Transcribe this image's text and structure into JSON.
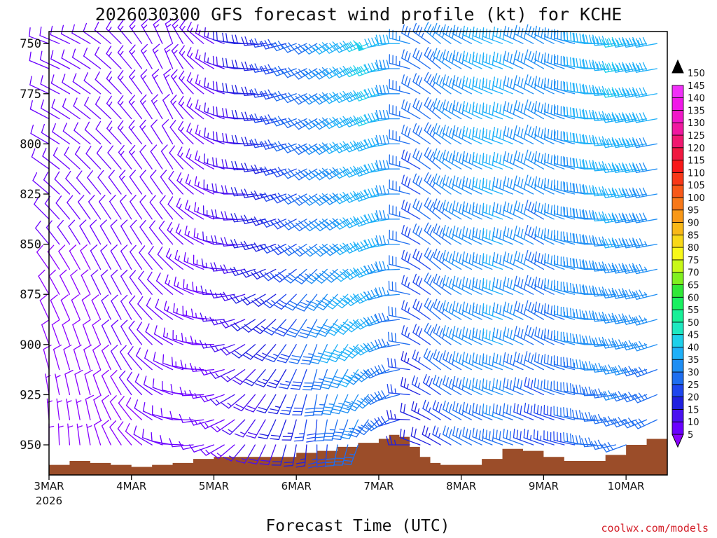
{
  "chart_data": {
    "type": "wind-barb-time-height",
    "title": "2026030300 GFS forecast wind profile (kt) for KCHE",
    "xlabel": "Forecast Time (UTC)",
    "ylabel": "",
    "credit": "coolwx.com/models",
    "x_start_hours": 0,
    "x_end_hours": 180,
    "x_ticks": [
      {
        "hour": 0,
        "label": "3MAR",
        "sublabel": "2026"
      },
      {
        "hour": 24,
        "label": "4MAR"
      },
      {
        "hour": 48,
        "label": "5MAR"
      },
      {
        "hour": 72,
        "label": "6MAR"
      },
      {
        "hour": 96,
        "label": "7MAR"
      },
      {
        "hour": 120,
        "label": "8MAR"
      },
      {
        "hour": 144,
        "label": "9MAR"
      },
      {
        "hour": 168,
        "label": "10MAR"
      }
    ],
    "y_range_hpa": [
      744,
      965
    ],
    "y_ticks": [
      750,
      775,
      800,
      825,
      850,
      875,
      900,
      925,
      950
    ],
    "colorbar": {
      "levels": [
        5,
        10,
        15,
        20,
        25,
        30,
        35,
        40,
        45,
        50,
        55,
        60,
        65,
        70,
        75,
        80,
        85,
        90,
        95,
        100,
        105,
        110,
        115,
        120,
        125,
        130,
        135,
        140,
        145,
        150
      ],
      "colors": [
        "#8a00ff",
        "#6a00ff",
        "#4a10f0",
        "#2020e0",
        "#1e46ee",
        "#1e6ef0",
        "#1e8ef4",
        "#1eb0f8",
        "#1ed0ea",
        "#1ee8c0",
        "#18f098",
        "#18f060",
        "#30e838",
        "#80f020",
        "#c8f818",
        "#f8f818",
        "#f8d818",
        "#f8b818",
        "#f89818",
        "#f87818",
        "#f85818",
        "#f83818",
        "#f81818",
        "#f01840",
        "#f01870",
        "#f018a0",
        "#f018c8",
        "#f018e8",
        "#f030f8",
        "#000000"
      ]
    },
    "wind": {
      "time_step_hours": 3,
      "levels_hpa": [
        750,
        762.5,
        775,
        787.5,
        800,
        812.5,
        825,
        837.5,
        850,
        862.5,
        875,
        887.5,
        900,
        912.5,
        925,
        937.5,
        950
      ],
      "time_anchors_hours": [
        0,
        12,
        24,
        36,
        48,
        54,
        60,
        72,
        78,
        84,
        90,
        96,
        102,
        108,
        114,
        120,
        132,
        144,
        156,
        168,
        180
      ],
      "speed_kt": {
        "750": [
          12,
          10,
          14,
          13,
          14,
          20,
          22,
          30,
          34,
          40,
          44,
          48,
          40,
          30,
          35,
          38,
          42,
          36,
          40,
          46,
          40
        ],
        "800": [
          12,
          11,
          13,
          12,
          13,
          18,
          20,
          30,
          34,
          38,
          42,
          44,
          38,
          30,
          34,
          38,
          42,
          36,
          40,
          44,
          38
        ],
        "850": [
          10,
          10,
          12,
          12,
          14,
          18,
          20,
          28,
          32,
          38,
          40,
          44,
          36,
          28,
          32,
          36,
          40,
          34,
          38,
          40,
          36
        ],
        "900": [
          8,
          9,
          11,
          12,
          14,
          16,
          20,
          28,
          34,
          40,
          44,
          40,
          34,
          26,
          32,
          36,
          40,
          32,
          36,
          38,
          34
        ],
        "950": [
          6,
          7,
          9,
          11,
          12,
          14,
          16,
          22,
          26,
          30,
          34,
          30,
          26,
          20,
          24,
          30,
          34,
          26,
          30,
          32,
          30
        ]
      },
      "direction_deg": {
        "750": [
          290,
          300,
          320,
          340,
          300,
          280,
          270,
          250,
          240,
          240,
          245,
          250,
          270,
          300,
          310,
          300,
          290,
          300,
          280,
          260,
          260
        ],
        "800": [
          300,
          310,
          320,
          330,
          300,
          280,
          270,
          250,
          240,
          240,
          245,
          250,
          270,
          300,
          310,
          300,
          290,
          300,
          280,
          260,
          260
        ],
        "850": [
          320,
          330,
          330,
          320,
          290,
          270,
          260,
          240,
          235,
          235,
          240,
          250,
          270,
          300,
          310,
          300,
          290,
          300,
          280,
          260,
          260
        ],
        "900": [
          340,
          340,
          330,
          300,
          270,
          250,
          230,
          210,
          200,
          210,
          220,
          240,
          260,
          300,
          310,
          300,
          290,
          300,
          280,
          260,
          250
        ],
        "950": [
          360,
          350,
          320,
          280,
          250,
          230,
          210,
          190,
          180,
          190,
          200,
          220,
          250,
          290,
          300,
          300,
          290,
          290,
          280,
          250,
          240
        ]
      }
    },
    "terrain": {
      "fill_color": "#9b4d29",
      "time_hours": [
        0,
        6,
        12,
        18,
        24,
        30,
        36,
        42,
        48,
        54,
        60,
        66,
        72,
        78,
        84,
        90,
        96,
        99,
        102,
        105,
        108,
        111,
        114,
        117,
        120,
        126,
        132,
        138,
        144,
        150,
        156,
        162,
        168,
        174,
        180
      ],
      "surface_pressure_hpa": [
        960,
        958,
        959,
        960,
        961,
        960,
        959,
        957,
        956,
        956,
        956,
        956,
        954,
        953,
        951,
        949,
        947,
        945,
        946,
        951,
        956,
        959,
        960,
        960,
        960,
        957,
        952,
        953,
        956,
        958,
        958,
        955,
        950,
        947,
        946
      ]
    }
  }
}
